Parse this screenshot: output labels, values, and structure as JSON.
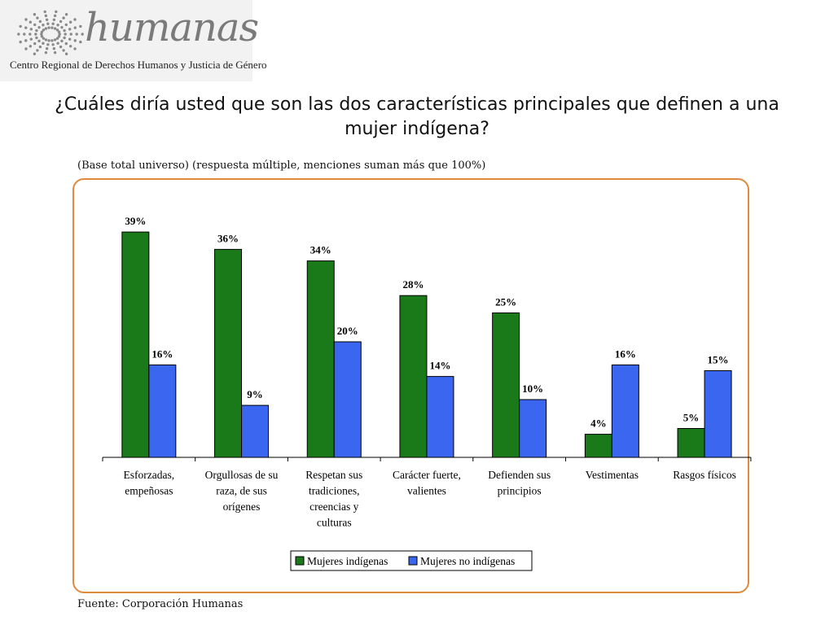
{
  "logo": {
    "name": "humanas",
    "subtitle": "Centro Regional de Derechos Humanos y Justicia de Género"
  },
  "header": {
    "title": "¿Cuáles diría usted que son las dos características principales que definen a una mujer indígena?",
    "note": "(Base total universo) (respuesta múltiple, menciones suman más que 100%)"
  },
  "footer": {
    "source": "Fuente: Corporación Humanas"
  },
  "colors": {
    "series1": "#1a7a1a",
    "series2": "#3a66f0",
    "frame": "#e08a3a"
  },
  "chart_data": {
    "type": "bar",
    "categories": [
      [
        "Esforzadas,",
        "empeñosas"
      ],
      [
        "Orgullosas de su",
        "raza, de sus",
        "orígenes"
      ],
      [
        "Respetan sus",
        "tradiciones,",
        "creencias y",
        "culturas"
      ],
      [
        "Carácter fuerte,",
        "valientes"
      ],
      [
        "Defienden sus",
        "principios"
      ],
      [
        "Vestimentas"
      ],
      [
        "Rasgos físicos"
      ]
    ],
    "series": [
      {
        "name": "Mujeres indígenas",
        "values": [
          39,
          36,
          34,
          28,
          25,
          4,
          5
        ]
      },
      {
        "name": "Mujeres no indígenas",
        "values": [
          16,
          9,
          20,
          14,
          10,
          16,
          15
        ]
      }
    ],
    "value_suffix": "%",
    "ylim": [
      0,
      40
    ],
    "grid": false,
    "legend": "bottom-center"
  }
}
